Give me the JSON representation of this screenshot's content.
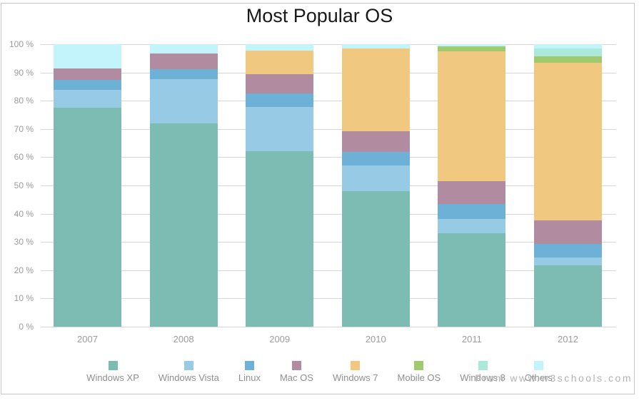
{
  "title": "Most Popular OS",
  "watermark": "From www.w3schools.com",
  "colors": {
    "background": "#ffffff",
    "border": "#c5c5c5",
    "gridline": "#d7d7d7",
    "axis_label": "#9b9b9b",
    "title_text": "#191919",
    "legend_text": "#8f8f8f",
    "watermark_text": "#b3b3b3"
  },
  "chart_data": {
    "type": "bar",
    "stacked": true,
    "title": "Most Popular OS",
    "xlabel": "",
    "ylabel": "",
    "ylim": [
      0,
      100
    ],
    "ytick_step": 10,
    "ytick_suffix": " %",
    "grid": true,
    "legend_position": "bottom",
    "categories": [
      "2007",
      "2008",
      "2009",
      "2010",
      "2011",
      "2012"
    ],
    "series": [
      {
        "name": "Windows XP",
        "color": "#7cbcb3",
        "values": [
          77.5,
          72.0,
          62.0,
          48.1,
          33.1,
          21.6
        ]
      },
      {
        "name": "Windows Vista",
        "color": "#97cae4",
        "values": [
          6.4,
          15.7,
          15.9,
          9.0,
          5.1,
          2.8
        ]
      },
      {
        "name": "Linux",
        "color": "#6db1d7",
        "values": [
          3.5,
          3.5,
          4.6,
          4.7,
          5.2,
          4.8
        ]
      },
      {
        "name": "Mac OS",
        "color": "#b18ca0",
        "values": [
          4.1,
          5.4,
          6.9,
          7.3,
          8.0,
          8.5
        ]
      },
      {
        "name": "Windows 7",
        "color": "#f1c87f",
        "values": [
          0,
          0,
          8.3,
          29.5,
          46.0,
          55.7
        ]
      },
      {
        "name": "Mobile OS",
        "color": "#a1c96e",
        "values": [
          0,
          0,
          0,
          0,
          1.8,
          2.2
        ]
      },
      {
        "name": "Windows 8",
        "color": "#abe9da",
        "values": [
          0,
          0,
          0,
          0,
          0,
          2.8
        ]
      },
      {
        "name": "Others",
        "color": "#c3f4fc",
        "values": [
          8.5,
          3.4,
          2.3,
          1.4,
          0.8,
          1.6
        ]
      }
    ]
  }
}
